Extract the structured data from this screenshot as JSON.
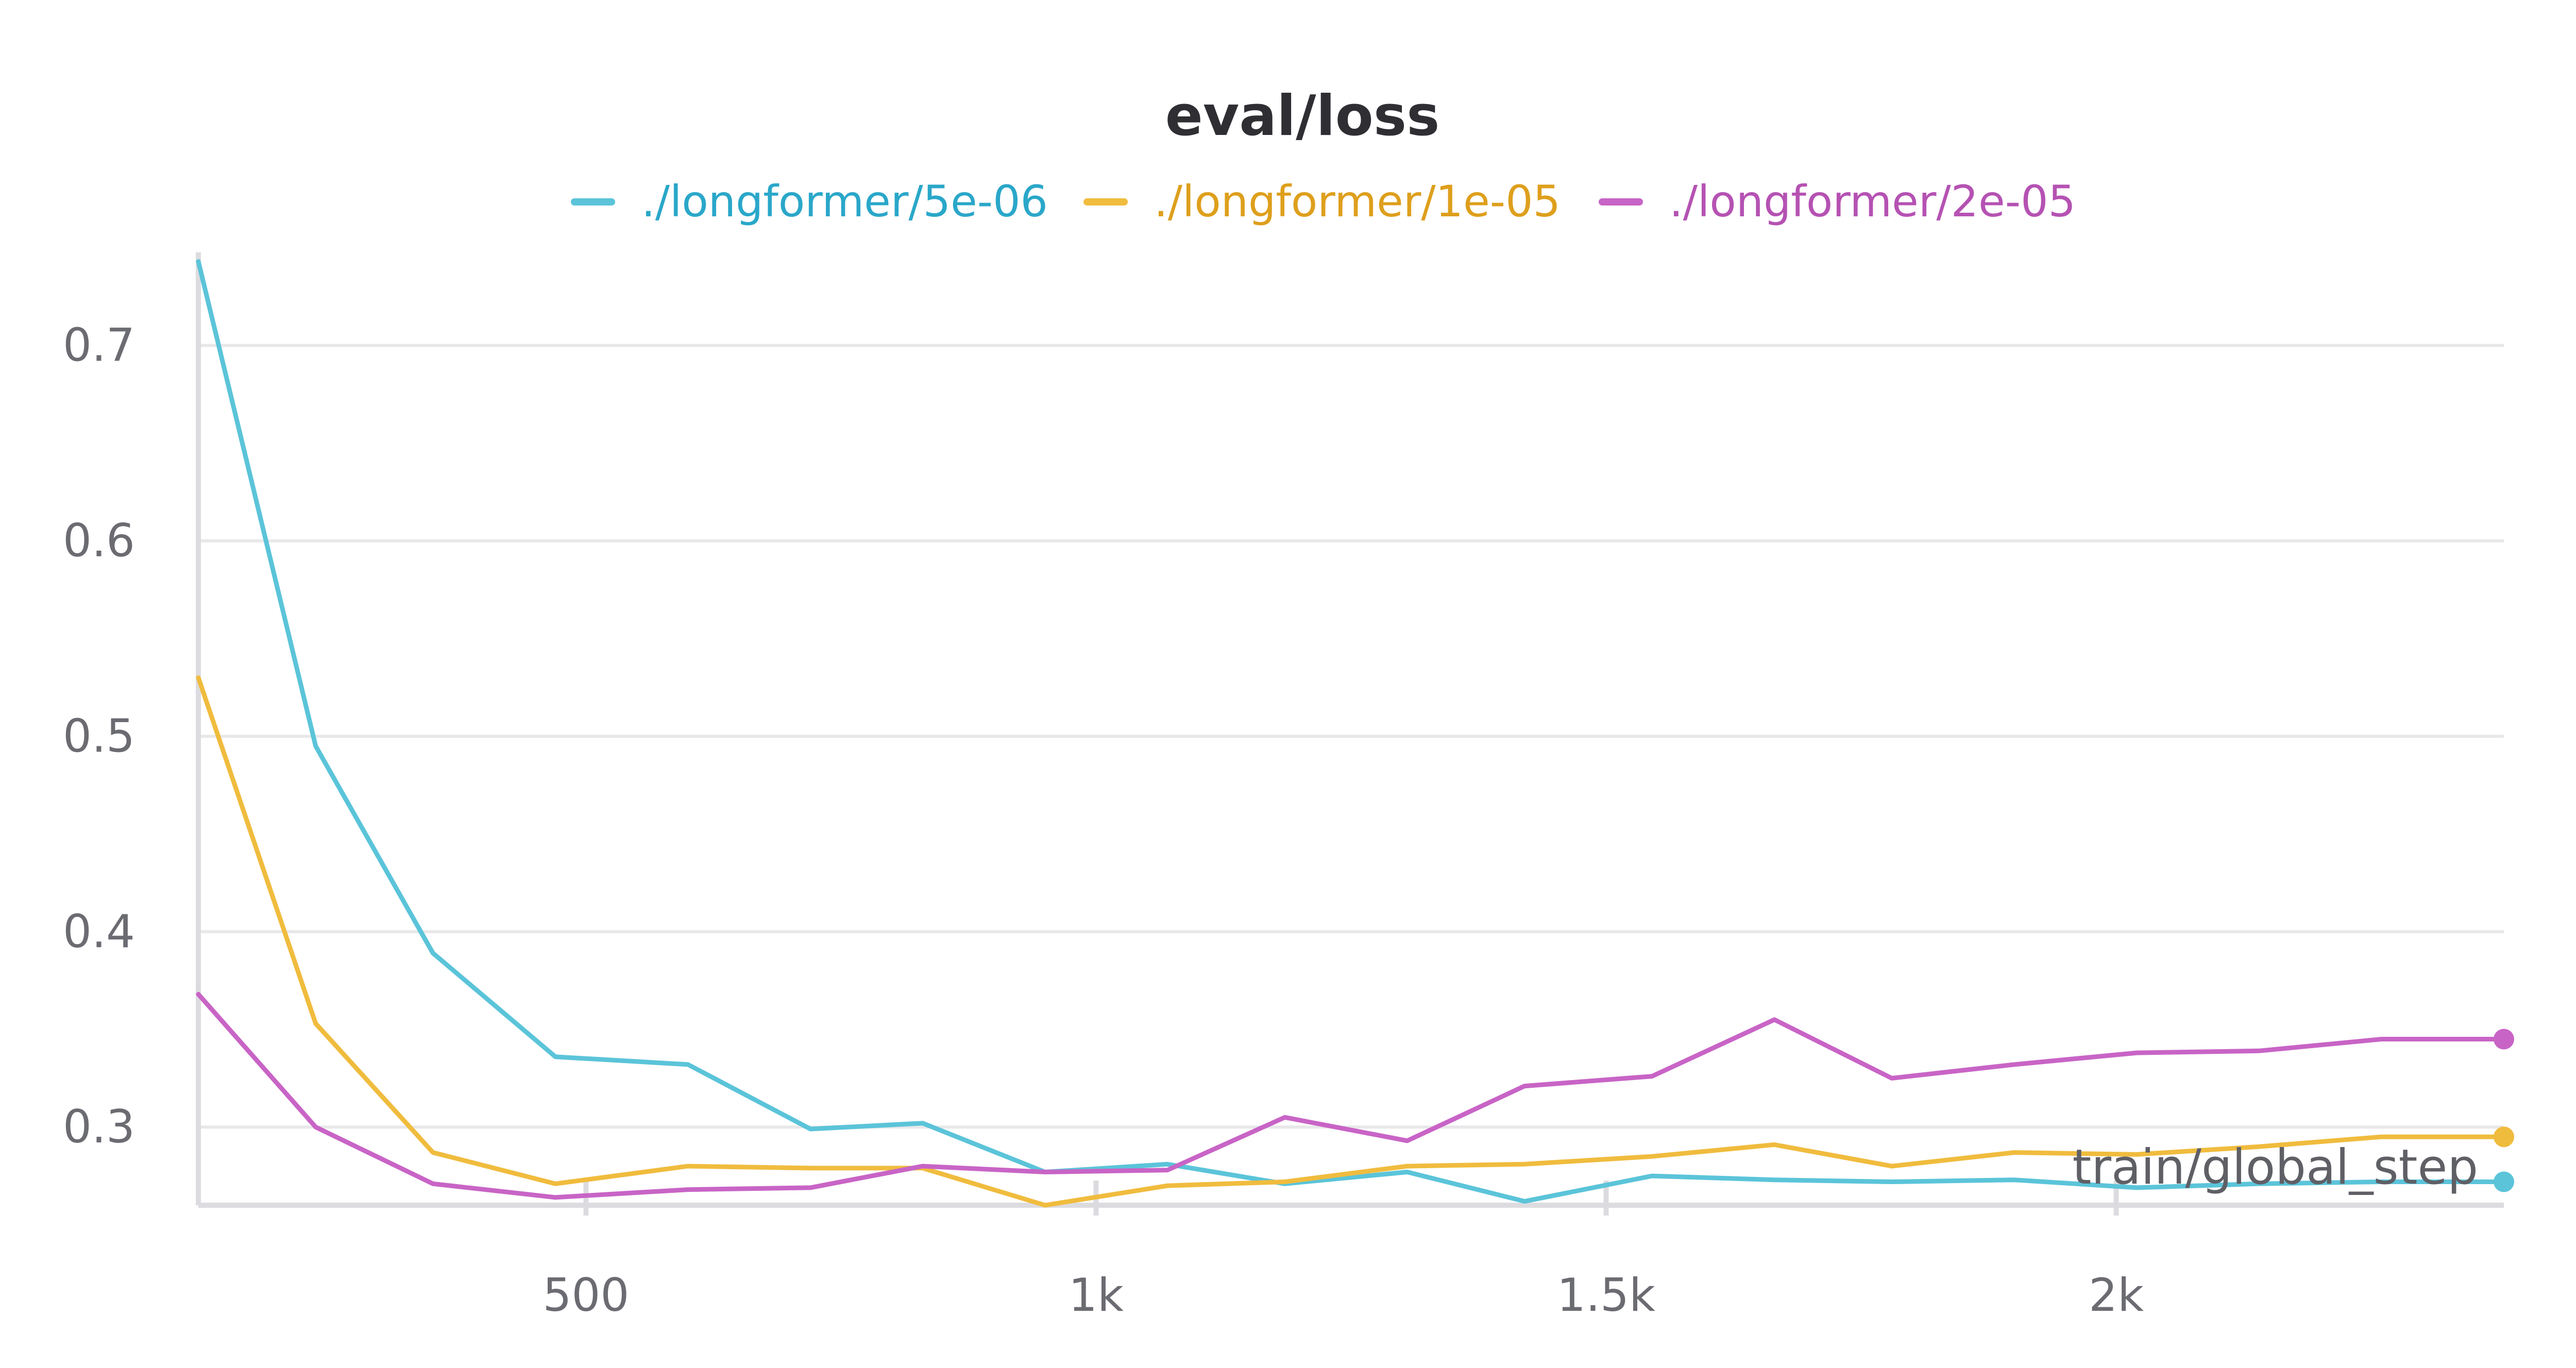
{
  "chart_data": {
    "type": "line",
    "title": "eval/loss",
    "xlabel": "train/global_step",
    "ylabel": "",
    "xlim": [
      120,
      2380
    ],
    "ylim": [
      0.26,
      0.745
    ],
    "x_ticks": [
      {
        "value": 500,
        "label": "500"
      },
      {
        "value": 1000,
        "label": "1k"
      },
      {
        "value": 1500,
        "label": "1.5k"
      },
      {
        "value": 2000,
        "label": "2k"
      }
    ],
    "y_ticks": [
      {
        "value": 0.3,
        "label": "0.3"
      },
      {
        "value": 0.4,
        "label": "0.4"
      },
      {
        "value": 0.5,
        "label": "0.5"
      },
      {
        "value": 0.6,
        "label": "0.6"
      },
      {
        "value": 0.7,
        "label": "0.7"
      }
    ],
    "grid": true,
    "legend_position": "top-center",
    "x": [
      120,
      235,
      350,
      470,
      600,
      720,
      830,
      950,
      1070,
      1185,
      1305,
      1420,
      1545,
      1665,
      1780,
      1900,
      2020,
      2140,
      2260,
      2380
    ],
    "series": [
      {
        "name": "./longformer/5e-06",
        "color": "#5bc4d9",
        "text_color": "#2aa7c9",
        "values": [
          0.743,
          0.495,
          0.389,
          0.336,
          0.332,
          0.299,
          0.302,
          0.277,
          0.281,
          0.271,
          0.277,
          0.262,
          0.275,
          0.273,
          0.272,
          0.273,
          0.269,
          0.271,
          0.272,
          0.272
        ]
      },
      {
        "name": "./longformer/1e-05",
        "color": "#f0bc3e",
        "text_color": "#de9f1c",
        "values": [
          0.53,
          0.353,
          0.287,
          0.271,
          0.28,
          0.279,
          0.279,
          0.26,
          0.27,
          0.272,
          0.28,
          0.281,
          0.285,
          0.291,
          0.28,
          0.287,
          0.286,
          0.29,
          0.295,
          0.295
        ]
      },
      {
        "name": "./longformer/2e-05",
        "color": "#c864c6",
        "text_color": "#b552b3",
        "values": [
          0.368,
          0.3,
          0.271,
          0.264,
          0.268,
          0.269,
          0.28,
          0.277,
          0.278,
          0.305,
          0.293,
          0.321,
          0.326,
          0.355,
          0.325,
          0.332,
          0.338,
          0.339,
          0.345,
          0.345
        ]
      }
    ]
  }
}
